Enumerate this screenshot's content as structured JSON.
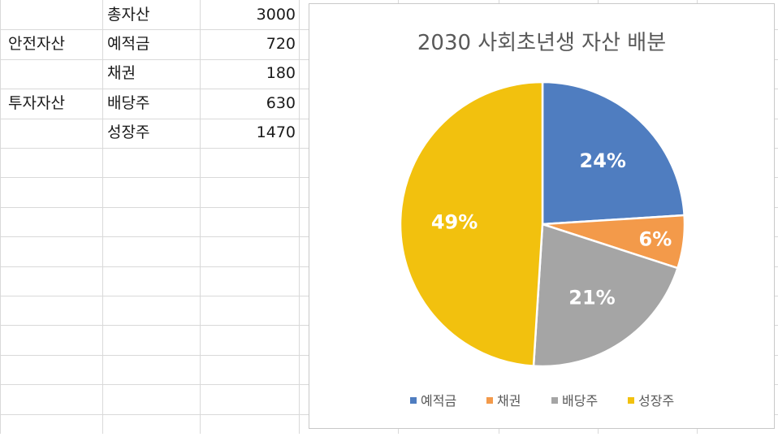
{
  "sheet": {
    "rows": [
      {
        "group": "",
        "item": "총자산",
        "value": "3000"
      },
      {
        "group": "안전자산",
        "item": "예적금",
        "value": "720"
      },
      {
        "group": "",
        "item": "채권",
        "value": "180"
      },
      {
        "group": "투자자산",
        "item": "배당주",
        "value": "630"
      },
      {
        "group": "",
        "item": "성장주",
        "value": "1470"
      }
    ]
  },
  "chart_data": {
    "type": "pie",
    "title": "2030 사회초년생 자산 배분",
    "categories": [
      "예적금",
      "채권",
      "배당주",
      "성장주"
    ],
    "values": [
      720,
      180,
      630,
      1470
    ],
    "labels": [
      "24%",
      "6%",
      "21%",
      "49%"
    ],
    "colors": [
      "#4f7dc0",
      "#f39a4a",
      "#a5a5a5",
      "#f2c10e"
    ],
    "legend_position": "bottom"
  }
}
